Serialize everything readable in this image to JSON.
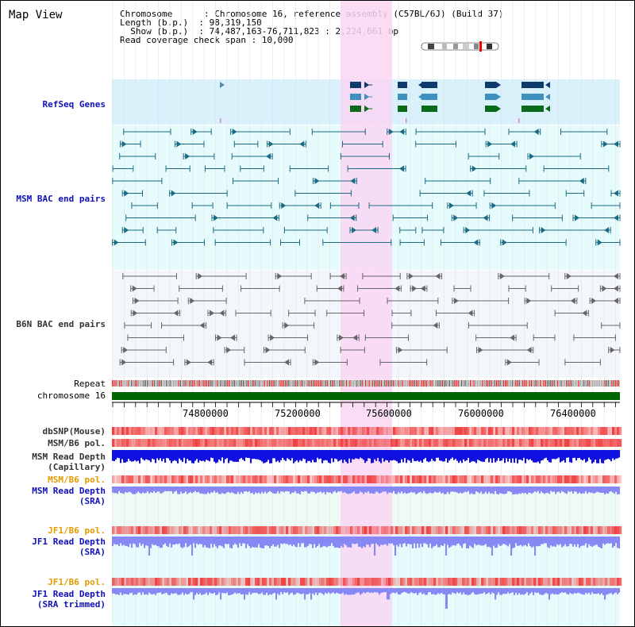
{
  "header": {
    "title": "Map View",
    "info_lines": [
      "Chromosome      : Chromosome 16, reference assembly (C57BL/6J) (Build 37)",
      "Length (b.p.)  : 98,319,150",
      "  Show (b.p.)  : 74,487,163-76,711,823 : 2,224,661 bp",
      "Read coverage check span : 10,000"
    ]
  },
  "tracks": {
    "refseq": "RefSeq Genes",
    "msm_bac": "MSM BAC end pairs",
    "b6n_bac": "B6N BAC end pairs",
    "repeat": "Repeat",
    "chromosome": "chromosome 16",
    "dbsnp": "dbSNP(Mouse)",
    "msm_b6_pol": "MSM/B6 pol.",
    "msm_read_depth_cap_1": "MSM Read Depth",
    "msm_read_depth_cap_2": "(Capillary)",
    "msm_b6_pol_sra": "MSM/B6 pol.",
    "msm_read_depth_sra_1": "MSM Read Depth",
    "msm_read_depth_sra_2": "(SRA)",
    "jf1_b6_pol": "JF1/B6 pol.",
    "jf1_read_depth_sra_1": "JF1 Read Depth",
    "jf1_read_depth_sra_2": "(SRA)",
    "jf1_b6_pol_trim": "JF1/B6 pol.",
    "jf1_read_depth_trim_1": "JF1 Read Depth",
    "jf1_read_depth_trim_2": "(SRA trimmed)"
  },
  "axis": {
    "labels": [
      "74800000",
      "75200000",
      "75600000",
      "76000000",
      "76400000"
    ]
  },
  "colors": {
    "highlight": "#f9d6f3",
    "refseq_bg": "#d9f1fb",
    "msm_bg": "#e6fbfb",
    "b6n_bg": "#f3f6fa",
    "gene_dark": "#0e3a6e",
    "gene_mid": "#3f8fbf",
    "gene_green": "#0a6b1a",
    "msm_line": "#1b6b84",
    "b6n_line": "#666666",
    "chrom_green": "#006400",
    "snp_red": "#f04040",
    "depth_blue": "#1010e0",
    "depth_light": "#8888f4"
  }
}
